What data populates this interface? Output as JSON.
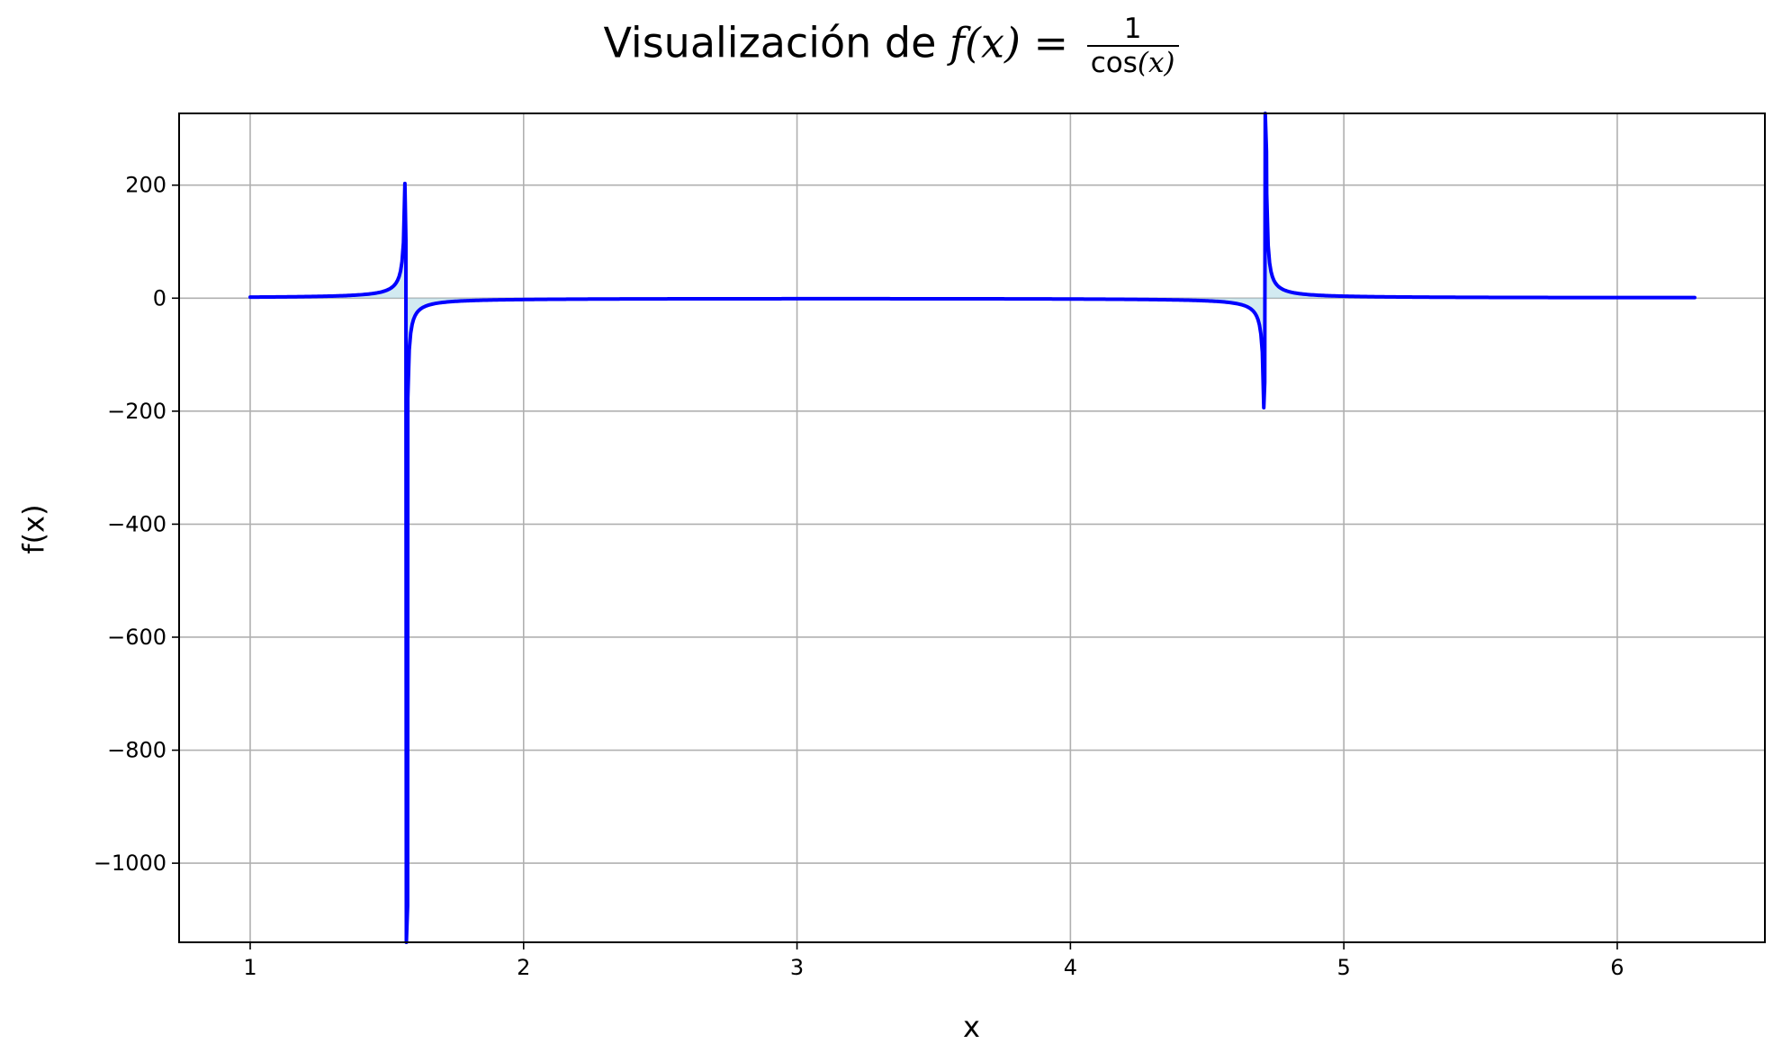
{
  "chart_data": {
    "type": "line",
    "title_prefix": "Visualización de ",
    "title_fx": "f(x) = ",
    "title_numerator": "1",
    "title_denominator_fn": "cos",
    "title_denominator_arg": "(x)",
    "xlabel": "x",
    "ylabel": "f(x)",
    "xlim": [
      0.74,
      6.54
    ],
    "ylim": [
      -1140,
      327
    ],
    "x_ticks": [
      1,
      2,
      3,
      4,
      5,
      6
    ],
    "x_tick_labels": [
      "1",
      "2",
      "3",
      "4",
      "5",
      "6"
    ],
    "y_ticks": [
      200,
      0,
      -200,
      -400,
      -600,
      -800,
      -1000
    ],
    "y_tick_labels": [
      "200",
      "0",
      "−200",
      "−400",
      "−600",
      "−800",
      "−1000"
    ],
    "grid": true,
    "series": [
      {
        "name": "1/cos(x)",
        "color": "#0000ff",
        "fill_color": "#add8e6",
        "function": "1/cos(x)",
        "x_start": 1.0,
        "x_end": 6.2832,
        "samples": 1000,
        "notable_points": [
          {
            "x": 1.5695,
            "y": 103
          },
          {
            "x": 1.5758,
            "y": -1075
          },
          {
            "x": 4.7107,
            "y": -149
          },
          {
            "x": 4.717,
            "y": 260
          }
        ]
      }
    ]
  }
}
